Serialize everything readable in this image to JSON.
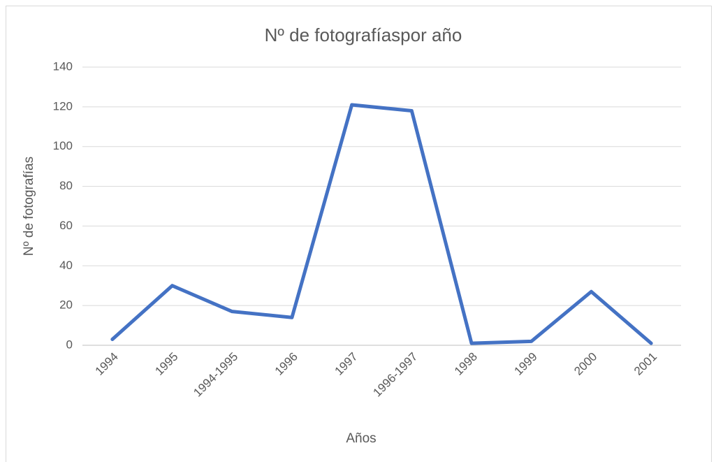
{
  "chart_data": {
    "type": "line",
    "title": "Nº de fotografíaspor año",
    "x_label": "Años",
    "y_label": "Nº de fotografías",
    "categories": [
      "1994",
      "1995",
      "1994-1995",
      "1996",
      "1997",
      "1996-1997",
      "1998",
      "1999",
      "2000",
      "2001"
    ],
    "series": [
      {
        "name": "Nº de fotografías",
        "color": "#4472c4",
        "values": [
          3,
          30,
          17,
          14,
          121,
          118,
          1,
          2,
          27,
          1
        ]
      }
    ],
    "ylim": [
      0,
      140
    ],
    "yticks": [
      0,
      20,
      40,
      60,
      80,
      100,
      120,
      140
    ],
    "grid": true
  }
}
